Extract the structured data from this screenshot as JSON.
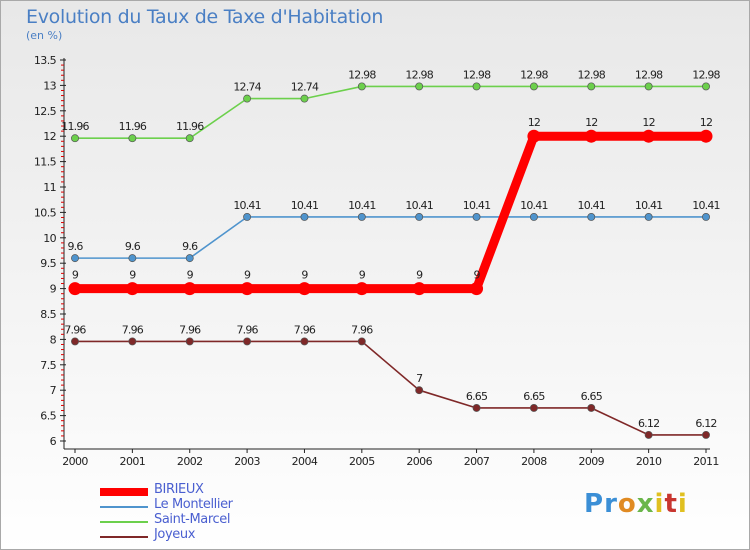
{
  "title": "Evolution du Taux de Taxe d'Habitation",
  "subtitle": "(en %)",
  "logo": "Proxiti",
  "chart_data": {
    "type": "line",
    "title": "Evolution du Taux de Taxe d'Habitation",
    "ylabel": "(en %)",
    "xlabel": "",
    "x": [
      "2000",
      "2001",
      "2002",
      "2003",
      "2004",
      "2005",
      "2006",
      "2007",
      "2008",
      "2009",
      "2010",
      "2011"
    ],
    "ylim": [
      6,
      13.5
    ],
    "yticks": [
      "6",
      "6.5",
      "7",
      "7.5",
      "8",
      "8.5",
      "9",
      "9.5",
      "10",
      "10.5",
      "11",
      "11.5",
      "12",
      "12.5",
      "13",
      "13.5"
    ],
    "grid": false,
    "legend": "bottom-left",
    "series": [
      {
        "name": "BIRIEUX",
        "color": "#ff0000",
        "values": [
          9,
          9,
          9,
          9,
          9,
          9,
          9,
          9,
          12,
          12,
          12,
          12
        ],
        "labels": [
          "9",
          "9",
          "9",
          "9",
          "9",
          "9",
          "9",
          "9",
          "12",
          "12",
          "12",
          "12"
        ]
      },
      {
        "name": "Le Montellier",
        "color": "#4f94cd",
        "values": [
          9.6,
          9.6,
          9.6,
          10.41,
          10.41,
          10.41,
          10.41,
          10.41,
          10.41,
          10.41,
          10.41,
          10.41
        ],
        "labels": [
          "9.6",
          "9.6",
          "9.6",
          "10.41",
          "10.41",
          "10.41",
          "10.41",
          "10.41",
          "10.41",
          "10.41",
          "10.41",
          "10.41"
        ]
      },
      {
        "name": "Saint-Marcel",
        "color": "#6cd04c",
        "values": [
          11.96,
          11.96,
          11.96,
          12.74,
          12.74,
          12.98,
          12.98,
          12.98,
          12.98,
          12.98,
          12.98,
          12.98
        ],
        "labels": [
          "11.96",
          "11.96",
          "11.96",
          "12.74",
          "12.74",
          "12.98",
          "12.98",
          "12.98",
          "12.98",
          "12.98",
          "12.98",
          "12.98"
        ]
      },
      {
        "name": "Joyeux",
        "color": "#7f2828",
        "values": [
          7.96,
          7.96,
          7.96,
          7.96,
          7.96,
          7.96,
          7,
          6.65,
          6.65,
          6.65,
          6.12,
          6.12
        ],
        "labels": [
          "7.96",
          "7.96",
          "7.96",
          "7.96",
          "7.96",
          "7.96",
          "7",
          "6.65",
          "6.65",
          "6.65",
          "6.12",
          "6.12"
        ]
      }
    ]
  }
}
